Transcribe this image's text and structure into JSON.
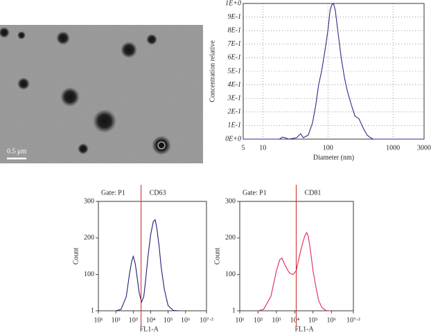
{
  "image": {
    "scale_label": "0.5 μm"
  },
  "chart_data": [
    {
      "type": "line",
      "xscale": "log",
      "grid": true,
      "color": "#2a2a8a",
      "xlabel": "Diameter (nm)",
      "ylabel": "Concentration relative",
      "xlim": [
        5,
        3000
      ],
      "xticks": [
        5,
        10,
        100,
        1000,
        3000
      ],
      "ylim": [
        0,
        1
      ],
      "yticks": [
        {
          "value": 0,
          "label": "0E+0"
        },
        {
          "value": 0.1,
          "label": "1E-1"
        },
        {
          "value": 0.2,
          "label": "2E-1"
        },
        {
          "value": 0.3,
          "label": "3E-1"
        },
        {
          "value": 0.4,
          "label": "4E-1"
        },
        {
          "value": 0.5,
          "label": "5E-1"
        },
        {
          "value": 0.6,
          "label": "6E-1"
        },
        {
          "value": 0.7,
          "label": "7E-1"
        },
        {
          "value": 0.8,
          "label": "8E-1"
        },
        {
          "value": 0.9,
          "label": "9E-1"
        },
        {
          "value": 1,
          "label": "1E+0"
        }
      ],
      "x": [
        5,
        18,
        20,
        22,
        25,
        33,
        38,
        42,
        50,
        58,
        65,
        72,
        80,
        90,
        100,
        108,
        115,
        122,
        130,
        140,
        160,
        180,
        200,
        230,
        260,
        300,
        350,
        400,
        450,
        500,
        3000
      ],
      "values": [
        0,
        0,
        0.015,
        0.01,
        0,
        0.01,
        0.04,
        0.01,
        0.03,
        0.12,
        0.25,
        0.4,
        0.5,
        0.65,
        0.8,
        0.95,
        0.99,
        1.0,
        0.95,
        0.82,
        0.6,
        0.45,
        0.35,
        0.25,
        0.17,
        0.15,
        0.08,
        0.03,
        0.01,
        0,
        0
      ]
    },
    {
      "type": "histogram-line",
      "xscale": "log",
      "color": "#1c1c7c",
      "gate_label": "Gate: P1",
      "marker_label": "CD63",
      "gate_x": 2800,
      "gate_color": "#d02020",
      "xlabel": "FL1-A",
      "ylabel": "Count",
      "xlim": [
        10,
        15848932
      ],
      "xticks": [
        {
          "value": 10,
          "label": "10¹"
        },
        {
          "value": 100,
          "label": "10²"
        },
        {
          "value": 1000,
          "label": "10³"
        },
        {
          "value": 10000,
          "label": "10⁴"
        },
        {
          "value": 100000,
          "label": "10⁵"
        },
        {
          "value": 1000000,
          "label": "10⁶"
        },
        {
          "value": 15848932,
          "label": "10⁷·²"
        }
      ],
      "ylim": [
        1,
        300
      ],
      "yticks": [
        1,
        100,
        200,
        300
      ],
      "x": [
        100,
        200,
        400,
        600,
        800,
        1000,
        1300,
        1700,
        2200,
        3000,
        4000,
        5000,
        7000,
        10000,
        14000,
        18000,
        22000,
        30000,
        40000,
        60000,
        100000,
        200000,
        400000
      ],
      "values": [
        1,
        5,
        40,
        100,
        135,
        150,
        130,
        90,
        50,
        25,
        40,
        80,
        150,
        210,
        245,
        250,
        230,
        180,
        120,
        60,
        15,
        2,
        1
      ]
    },
    {
      "type": "histogram-line",
      "xscale": "log",
      "color": "#e0245e",
      "gate_label": "Gate: P1",
      "marker_label": "CD81",
      "gate_x": 12000,
      "gate_color": "#d02020",
      "xlabel": "FL1-A",
      "ylabel": "Count",
      "xlim": [
        10,
        15848932
      ],
      "xticks": [
        {
          "value": 10,
          "label": "10¹"
        },
        {
          "value": 100,
          "label": "10²"
        },
        {
          "value": 1000,
          "label": "10³"
        },
        {
          "value": 10000,
          "label": "10⁴"
        },
        {
          "value": 100000,
          "label": "10⁵"
        },
        {
          "value": 1000000,
          "label": "10⁶"
        },
        {
          "value": 15848932,
          "label": "10⁷·²"
        }
      ],
      "ylim": [
        1,
        300
      ],
      "yticks": [
        1,
        100,
        200,
        300
      ],
      "x": [
        100,
        200,
        500,
        1000,
        1500,
        2000,
        3000,
        5000,
        8000,
        12000,
        18000,
        25000,
        35000,
        45000,
        55000,
        70000,
        100000,
        150000,
        200000,
        300000,
        500000,
        800000
      ],
      "values": [
        1,
        5,
        40,
        110,
        140,
        145,
        125,
        105,
        100,
        110,
        150,
        180,
        205,
        215,
        205,
        170,
        110,
        60,
        30,
        10,
        2,
        1
      ]
    }
  ]
}
